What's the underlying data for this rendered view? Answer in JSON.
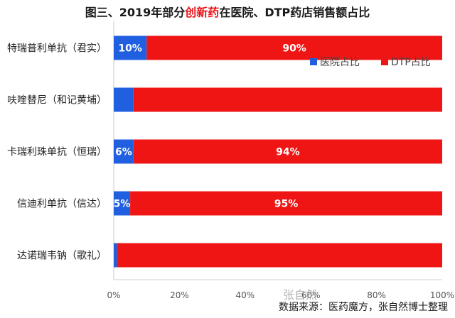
{
  "title": {
    "before": "图三、2019年部分",
    "highlight": "创新药",
    "after": "在医院、DTP药店销售额占比"
  },
  "colors": {
    "hospital": "#1f5fe0",
    "dtp": "#ef1515",
    "highlight": "#e8151b"
  },
  "chart_data": {
    "type": "bar",
    "orientation": "horizontal",
    "stacked": true,
    "percent": true,
    "categories": [
      "特瑞普利单抗（君实）",
      "呋喹替尼（和记黄埔）",
      "卡瑞利珠单抗（恒瑞）",
      "信迪利单抗（信达）",
      "达诺瑞韦钠（歌礼）"
    ],
    "series": [
      {
        "name": "医院占比",
        "values": [
          10,
          6,
          6,
          5,
          1
        ],
        "labels": [
          "10%",
          "",
          "6%",
          "5%",
          ""
        ]
      },
      {
        "name": "DTP占比",
        "values": [
          90,
          94,
          94,
          95,
          99
        ],
        "labels": [
          "90%",
          "",
          "94%",
          "95%",
          ""
        ]
      }
    ],
    "xlim": [
      0,
      100
    ],
    "xticks": [
      "0%",
      "20%",
      "40%",
      "60%",
      "80%",
      "100%"
    ],
    "legend_position": "upper-right"
  },
  "watermark": "张自然",
  "source": "数据来源：医药魔方，张自然博士整理"
}
